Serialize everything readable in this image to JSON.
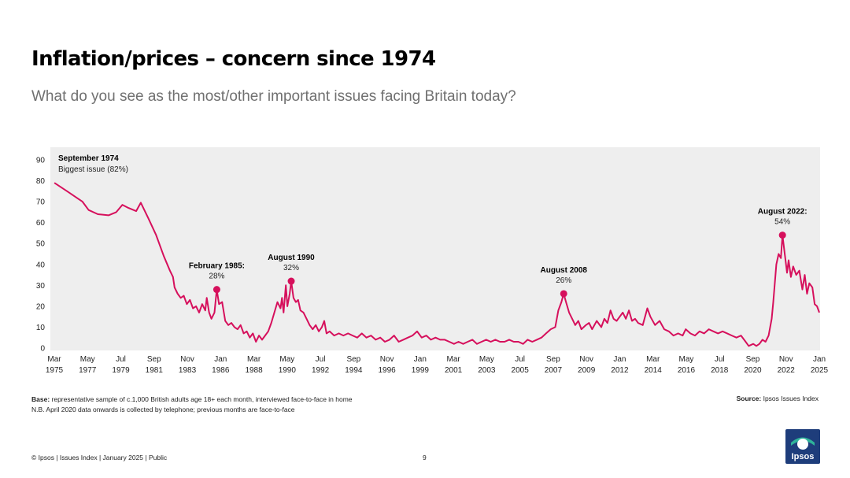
{
  "header": {
    "title": "Inflation/prices – concern since 1974",
    "subtitle": "What do you see as the most/other important issues facing Britain today?"
  },
  "colors": {
    "line": "#d6105c",
    "plot_bg": "#eeeeee",
    "title": "#000000",
    "subtitle": "#707070",
    "logo": "#1e3d7b"
  },
  "chart_data": {
    "type": "line",
    "title": "",
    "xlabel": "",
    "ylabel": "",
    "ylim": [
      0,
      90
    ],
    "yticks": [
      0,
      10,
      20,
      30,
      40,
      50,
      60,
      70,
      80,
      90
    ],
    "xlim": [
      1975.167,
      2025.0
    ],
    "x_tick_labels": [
      {
        "x": 1975.167,
        "month": "Mar",
        "year": "1975"
      },
      {
        "x": 1977.333,
        "month": "May",
        "year": "1977"
      },
      {
        "x": 1979.5,
        "month": "Jul",
        "year": "1979"
      },
      {
        "x": 1981.667,
        "month": "Sep",
        "year": "1981"
      },
      {
        "x": 1983.833,
        "month": "Nov",
        "year": "1983"
      },
      {
        "x": 1986.0,
        "month": "Jan",
        "year": "1986"
      },
      {
        "x": 1988.167,
        "month": "Mar",
        "year": "1988"
      },
      {
        "x": 1990.333,
        "month": "May",
        "year": "1990"
      },
      {
        "x": 1992.5,
        "month": "Jul",
        "year": "1992"
      },
      {
        "x": 1994.667,
        "month": "Sep",
        "year": "1994"
      },
      {
        "x": 1996.833,
        "month": "Nov",
        "year": "1996"
      },
      {
        "x": 1999.0,
        "month": "Jan",
        "year": "1999"
      },
      {
        "x": 2001.167,
        "month": "Mar",
        "year": "2001"
      },
      {
        "x": 2003.333,
        "month": "May",
        "year": "2003"
      },
      {
        "x": 2005.5,
        "month": "Jul",
        "year": "2005"
      },
      {
        "x": 2007.667,
        "month": "Sep",
        "year": "2007"
      },
      {
        "x": 2009.833,
        "month": "Nov",
        "year": "2009"
      },
      {
        "x": 2012.0,
        "month": "Jan",
        "year": "2012"
      },
      {
        "x": 2014.167,
        "month": "Mar",
        "year": "2014"
      },
      {
        "x": 2016.333,
        "month": "May",
        "year": "2016"
      },
      {
        "x": 2018.5,
        "month": "Jul",
        "year": "2018"
      },
      {
        "x": 2020.667,
        "month": "Sep",
        "year": "2020"
      },
      {
        "x": 2022.833,
        "month": "Nov",
        "year": "2022"
      },
      {
        "x": 2025.0,
        "month": "Jan",
        "year": "2025"
      }
    ],
    "series": [
      {
        "name": "Inflation/prices",
        "points": [
          [
            1975.17,
            79
          ],
          [
            1976.0,
            75
          ],
          [
            1977.0,
            70
          ],
          [
            1977.4,
            66
          ],
          [
            1978.0,
            64
          ],
          [
            1978.7,
            63.5
          ],
          [
            1979.2,
            65
          ],
          [
            1979.6,
            68.5
          ],
          [
            1980.0,
            67
          ],
          [
            1980.5,
            65.5
          ],
          [
            1980.8,
            69.5
          ],
          [
            1981.3,
            62
          ],
          [
            1981.8,
            54
          ],
          [
            1982.3,
            44
          ],
          [
            1982.7,
            37
          ],
          [
            1982.9,
            34
          ],
          [
            1983.0,
            29
          ],
          [
            1983.2,
            26
          ],
          [
            1983.4,
            24
          ],
          [
            1983.6,
            25
          ],
          [
            1983.8,
            21
          ],
          [
            1984.0,
            23
          ],
          [
            1984.2,
            19
          ],
          [
            1984.4,
            20
          ],
          [
            1984.6,
            17
          ],
          [
            1984.8,
            21
          ],
          [
            1985.0,
            18
          ],
          [
            1985.1,
            24
          ],
          [
            1985.25,
            17
          ],
          [
            1985.4,
            14
          ],
          [
            1985.6,
            17
          ],
          [
            1985.75,
            28
          ],
          [
            1985.9,
            21
          ],
          [
            1986.1,
            22
          ],
          [
            1986.3,
            13
          ],
          [
            1986.5,
            11
          ],
          [
            1986.7,
            12
          ],
          [
            1986.9,
            10
          ],
          [
            1987.1,
            9
          ],
          [
            1987.3,
            11
          ],
          [
            1987.5,
            7
          ],
          [
            1987.7,
            8
          ],
          [
            1987.9,
            5
          ],
          [
            1988.1,
            7
          ],
          [
            1988.3,
            3
          ],
          [
            1988.5,
            6
          ],
          [
            1988.7,
            4
          ],
          [
            1988.9,
            6
          ],
          [
            1989.1,
            8
          ],
          [
            1989.3,
            12
          ],
          [
            1989.5,
            17
          ],
          [
            1989.7,
            22
          ],
          [
            1989.9,
            19
          ],
          [
            1990.0,
            24
          ],
          [
            1990.1,
            17
          ],
          [
            1990.25,
            30
          ],
          [
            1990.35,
            20
          ],
          [
            1990.5,
            26
          ],
          [
            1990.6,
            32
          ],
          [
            1990.75,
            24
          ],
          [
            1990.9,
            22
          ],
          [
            1991.05,
            23
          ],
          [
            1991.2,
            18
          ],
          [
            1991.4,
            17
          ],
          [
            1991.6,
            14
          ],
          [
            1991.8,
            11
          ],
          [
            1992.0,
            9
          ],
          [
            1992.2,
            11
          ],
          [
            1992.4,
            8
          ],
          [
            1992.6,
            10
          ],
          [
            1992.75,
            13
          ],
          [
            1992.9,
            7
          ],
          [
            1993.1,
            8
          ],
          [
            1993.4,
            6
          ],
          [
            1993.7,
            7
          ],
          [
            1994.0,
            6
          ],
          [
            1994.3,
            7
          ],
          [
            1994.6,
            6
          ],
          [
            1994.9,
            5
          ],
          [
            1995.2,
            7
          ],
          [
            1995.5,
            5
          ],
          [
            1995.8,
            6
          ],
          [
            1996.1,
            4
          ],
          [
            1996.4,
            5
          ],
          [
            1996.7,
            3
          ],
          [
            1997.0,
            4
          ],
          [
            1997.3,
            6
          ],
          [
            1997.6,
            3
          ],
          [
            1997.9,
            4
          ],
          [
            1998.2,
            5
          ],
          [
            1998.5,
            6
          ],
          [
            1998.8,
            8
          ],
          [
            1999.1,
            5
          ],
          [
            1999.4,
            6
          ],
          [
            1999.7,
            4
          ],
          [
            2000.0,
            5
          ],
          [
            2000.3,
            4
          ],
          [
            2000.6,
            4
          ],
          [
            2000.9,
            3
          ],
          [
            2001.2,
            2
          ],
          [
            2001.5,
            3
          ],
          [
            2001.8,
            2
          ],
          [
            2002.1,
            3
          ],
          [
            2002.4,
            4
          ],
          [
            2002.7,
            2
          ],
          [
            2003.0,
            3
          ],
          [
            2003.3,
            4
          ],
          [
            2003.6,
            3
          ],
          [
            2003.9,
            4
          ],
          [
            2004.2,
            3
          ],
          [
            2004.5,
            3
          ],
          [
            2004.8,
            4
          ],
          [
            2005.1,
            3
          ],
          [
            2005.4,
            3
          ],
          [
            2005.7,
            2
          ],
          [
            2006.0,
            4
          ],
          [
            2006.3,
            3
          ],
          [
            2006.6,
            4
          ],
          [
            2006.9,
            5
          ],
          [
            2007.2,
            7
          ],
          [
            2007.5,
            9
          ],
          [
            2007.8,
            10
          ],
          [
            2008.0,
            18
          ],
          [
            2008.2,
            22
          ],
          [
            2008.35,
            26
          ],
          [
            2008.5,
            22
          ],
          [
            2008.7,
            17
          ],
          [
            2008.9,
            14
          ],
          [
            2009.1,
            11
          ],
          [
            2009.3,
            13
          ],
          [
            2009.5,
            9
          ],
          [
            2009.8,
            11
          ],
          [
            2010.0,
            12
          ],
          [
            2010.2,
            9
          ],
          [
            2010.5,
            13
          ],
          [
            2010.8,
            10
          ],
          [
            2011.0,
            14
          ],
          [
            2011.2,
            12
          ],
          [
            2011.4,
            18
          ],
          [
            2011.6,
            14
          ],
          [
            2011.8,
            13
          ],
          [
            2012.0,
            15
          ],
          [
            2012.2,
            17
          ],
          [
            2012.4,
            14
          ],
          [
            2012.6,
            18
          ],
          [
            2012.8,
            13
          ],
          [
            2013.0,
            14
          ],
          [
            2013.2,
            12
          ],
          [
            2013.5,
            11
          ],
          [
            2013.8,
            19
          ],
          [
            2014.0,
            15
          ],
          [
            2014.3,
            11
          ],
          [
            2014.6,
            13
          ],
          [
            2014.9,
            9
          ],
          [
            2015.2,
            8
          ],
          [
            2015.5,
            6
          ],
          [
            2015.8,
            7
          ],
          [
            2016.1,
            6
          ],
          [
            2016.3,
            9
          ],
          [
            2016.6,
            7
          ],
          [
            2016.9,
            6
          ],
          [
            2017.2,
            8
          ],
          [
            2017.5,
            7
          ],
          [
            2017.8,
            9
          ],
          [
            2018.1,
            8
          ],
          [
            2018.4,
            7
          ],
          [
            2018.7,
            8
          ],
          [
            2019.0,
            7
          ],
          [
            2019.3,
            6
          ],
          [
            2019.6,
            5
          ],
          [
            2019.9,
            6
          ],
          [
            2020.2,
            3
          ],
          [
            2020.4,
            1
          ],
          [
            2020.7,
            2
          ],
          [
            2020.9,
            1
          ],
          [
            2021.1,
            2
          ],
          [
            2021.3,
            4
          ],
          [
            2021.5,
            3
          ],
          [
            2021.7,
            6
          ],
          [
            2021.9,
            14
          ],
          [
            2022.0,
            22
          ],
          [
            2022.2,
            40
          ],
          [
            2022.35,
            45
          ],
          [
            2022.5,
            43
          ],
          [
            2022.6,
            54
          ],
          [
            2022.75,
            45
          ],
          [
            2022.9,
            36
          ],
          [
            2023.0,
            42
          ],
          [
            2023.15,
            34
          ],
          [
            2023.3,
            39
          ],
          [
            2023.5,
            35
          ],
          [
            2023.7,
            37
          ],
          [
            2023.9,
            28
          ],
          [
            2024.05,
            35
          ],
          [
            2024.2,
            26
          ],
          [
            2024.35,
            31
          ],
          [
            2024.55,
            29
          ],
          [
            2024.7,
            21
          ],
          [
            2024.85,
            20
          ],
          [
            2025.0,
            17
          ]
        ]
      }
    ],
    "annotations": [
      {
        "id": "sep1974",
        "title": "September 1974",
        "detail": "Biggest issue (82%)",
        "x": null,
        "y": null
      },
      {
        "id": "feb1985",
        "title": "February 1985:",
        "detail": "28%",
        "x": 1985.75,
        "y": 28
      },
      {
        "id": "aug1990",
        "title": "August 1990",
        "detail": "32%",
        "x": 1990.6,
        "y": 32
      },
      {
        "id": "aug2008",
        "title": "August 2008",
        "detail": "26%",
        "x": 2008.35,
        "y": 26
      },
      {
        "id": "aug2022",
        "title": "August 2022:",
        "detail": "54%",
        "x": 2022.6,
        "y": 54
      }
    ]
  },
  "notes": {
    "base_label": "Base:",
    "base_text": " representative sample of c.1,000 British adults age 18+ each month, interviewed face-to-face in home",
    "nb_text": "N.B. April 2020 data onwards is collected by telephone; previous months are face-to-face",
    "source_label": "Source:",
    "source_text": " Ipsos Issues Index"
  },
  "footer": {
    "left": "© Ipsos | Issues Index | January 2025 | Public",
    "page": "9",
    "logo_text": "Ipsos"
  }
}
